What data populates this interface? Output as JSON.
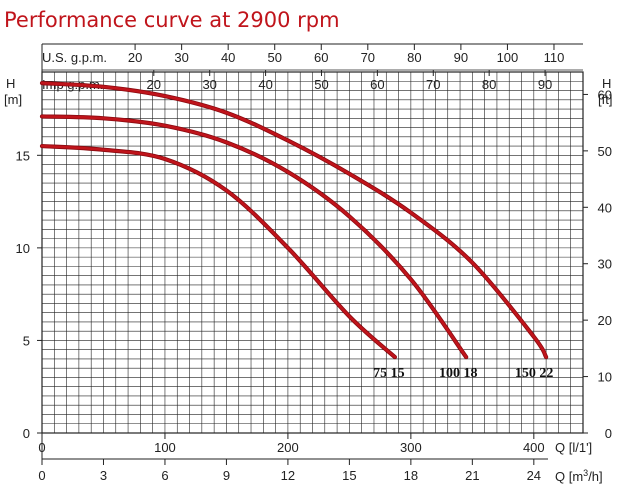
{
  "chart_data": {
    "type": "line",
    "title": "Performance curve at 2900 rpm",
    "x_axis": {
      "label": "Q [l/1']",
      "range": [
        0,
        440
      ],
      "ticks": [
        0,
        100,
        200,
        300,
        400
      ]
    },
    "x_axis_secondary": {
      "label": "Q [m³/h]",
      "ticks": [
        0,
        3,
        6,
        9,
        12,
        15,
        18,
        21,
        24
      ]
    },
    "top_axis_us": {
      "label": "U.S. g.p.m.",
      "ticks": [
        20,
        30,
        40,
        50,
        60,
        70,
        80,
        90,
        100,
        110
      ]
    },
    "top_axis_imp": {
      "label": "Imp g.p.m.",
      "ticks": [
        20,
        30,
        40,
        50,
        60,
        70,
        80,
        90
      ]
    },
    "y_axis": {
      "label": "H",
      "unit": "[m]",
      "range": [
        0,
        19.5
      ],
      "ticks": [
        0,
        5,
        10,
        15
      ]
    },
    "y_axis_secondary": {
      "label": "H",
      "unit": "[ft]",
      "ticks": [
        0,
        10,
        20,
        30,
        40,
        50,
        60
      ]
    },
    "grid": true,
    "series": [
      {
        "name": "75 15",
        "x": [
          0,
          50,
          100,
          150,
          200,
          250,
          287
        ],
        "y": [
          15.5,
          15.3,
          14.8,
          13.1,
          10.0,
          6.3,
          4.1
        ]
      },
      {
        "name": "100 18",
        "x": [
          0,
          50,
          100,
          150,
          200,
          250,
          300,
          345
        ],
        "y": [
          17.1,
          17.0,
          16.6,
          15.7,
          14.1,
          11.7,
          8.3,
          4.1
        ]
      },
      {
        "name": "150 22",
        "x": [
          0,
          50,
          100,
          150,
          200,
          250,
          300,
          350,
          400,
          410
        ],
        "y": [
          18.9,
          18.7,
          18.2,
          17.3,
          15.8,
          14.0,
          11.9,
          9.2,
          5.2,
          4.1
        ]
      }
    ],
    "colors": {
      "curve": "#c0141b",
      "grid": "#222222"
    }
  }
}
